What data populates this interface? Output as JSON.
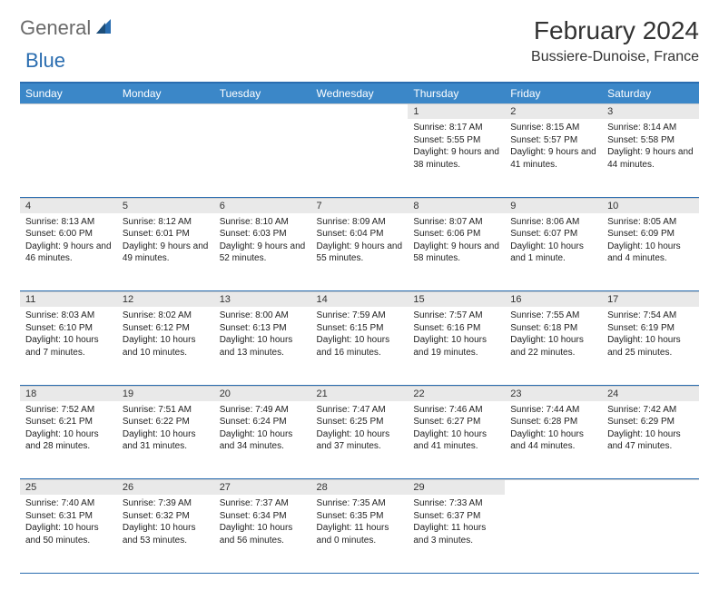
{
  "logo": {
    "part1": "General",
    "part2": "Blue"
  },
  "title": "February 2024",
  "location": "Bussiere-Dunoise, France",
  "colors": {
    "header_bg": "#3b87c8",
    "header_text": "#ffffff",
    "rule": "#2a6db0",
    "daynum_bg": "#e9e9e9",
    "logo_gray": "#6a6a6a",
    "logo_blue": "#2a6db0"
  },
  "day_headers": [
    "Sunday",
    "Monday",
    "Tuesday",
    "Wednesday",
    "Thursday",
    "Friday",
    "Saturday"
  ],
  "weeks": [
    [
      null,
      null,
      null,
      null,
      {
        "n": "1",
        "sr": "Sunrise: 8:17 AM",
        "ss": "Sunset: 5:55 PM",
        "dl": "Daylight: 9 hours and 38 minutes."
      },
      {
        "n": "2",
        "sr": "Sunrise: 8:15 AM",
        "ss": "Sunset: 5:57 PM",
        "dl": "Daylight: 9 hours and 41 minutes."
      },
      {
        "n": "3",
        "sr": "Sunrise: 8:14 AM",
        "ss": "Sunset: 5:58 PM",
        "dl": "Daylight: 9 hours and 44 minutes."
      }
    ],
    [
      {
        "n": "4",
        "sr": "Sunrise: 8:13 AM",
        "ss": "Sunset: 6:00 PM",
        "dl": "Daylight: 9 hours and 46 minutes."
      },
      {
        "n": "5",
        "sr": "Sunrise: 8:12 AM",
        "ss": "Sunset: 6:01 PM",
        "dl": "Daylight: 9 hours and 49 minutes."
      },
      {
        "n": "6",
        "sr": "Sunrise: 8:10 AM",
        "ss": "Sunset: 6:03 PM",
        "dl": "Daylight: 9 hours and 52 minutes."
      },
      {
        "n": "7",
        "sr": "Sunrise: 8:09 AM",
        "ss": "Sunset: 6:04 PM",
        "dl": "Daylight: 9 hours and 55 minutes."
      },
      {
        "n": "8",
        "sr": "Sunrise: 8:07 AM",
        "ss": "Sunset: 6:06 PM",
        "dl": "Daylight: 9 hours and 58 minutes."
      },
      {
        "n": "9",
        "sr": "Sunrise: 8:06 AM",
        "ss": "Sunset: 6:07 PM",
        "dl": "Daylight: 10 hours and 1 minute."
      },
      {
        "n": "10",
        "sr": "Sunrise: 8:05 AM",
        "ss": "Sunset: 6:09 PM",
        "dl": "Daylight: 10 hours and 4 minutes."
      }
    ],
    [
      {
        "n": "11",
        "sr": "Sunrise: 8:03 AM",
        "ss": "Sunset: 6:10 PM",
        "dl": "Daylight: 10 hours and 7 minutes."
      },
      {
        "n": "12",
        "sr": "Sunrise: 8:02 AM",
        "ss": "Sunset: 6:12 PM",
        "dl": "Daylight: 10 hours and 10 minutes."
      },
      {
        "n": "13",
        "sr": "Sunrise: 8:00 AM",
        "ss": "Sunset: 6:13 PM",
        "dl": "Daylight: 10 hours and 13 minutes."
      },
      {
        "n": "14",
        "sr": "Sunrise: 7:59 AM",
        "ss": "Sunset: 6:15 PM",
        "dl": "Daylight: 10 hours and 16 minutes."
      },
      {
        "n": "15",
        "sr": "Sunrise: 7:57 AM",
        "ss": "Sunset: 6:16 PM",
        "dl": "Daylight: 10 hours and 19 minutes."
      },
      {
        "n": "16",
        "sr": "Sunrise: 7:55 AM",
        "ss": "Sunset: 6:18 PM",
        "dl": "Daylight: 10 hours and 22 minutes."
      },
      {
        "n": "17",
        "sr": "Sunrise: 7:54 AM",
        "ss": "Sunset: 6:19 PM",
        "dl": "Daylight: 10 hours and 25 minutes."
      }
    ],
    [
      {
        "n": "18",
        "sr": "Sunrise: 7:52 AM",
        "ss": "Sunset: 6:21 PM",
        "dl": "Daylight: 10 hours and 28 minutes."
      },
      {
        "n": "19",
        "sr": "Sunrise: 7:51 AM",
        "ss": "Sunset: 6:22 PM",
        "dl": "Daylight: 10 hours and 31 minutes."
      },
      {
        "n": "20",
        "sr": "Sunrise: 7:49 AM",
        "ss": "Sunset: 6:24 PM",
        "dl": "Daylight: 10 hours and 34 minutes."
      },
      {
        "n": "21",
        "sr": "Sunrise: 7:47 AM",
        "ss": "Sunset: 6:25 PM",
        "dl": "Daylight: 10 hours and 37 minutes."
      },
      {
        "n": "22",
        "sr": "Sunrise: 7:46 AM",
        "ss": "Sunset: 6:27 PM",
        "dl": "Daylight: 10 hours and 41 minutes."
      },
      {
        "n": "23",
        "sr": "Sunrise: 7:44 AM",
        "ss": "Sunset: 6:28 PM",
        "dl": "Daylight: 10 hours and 44 minutes."
      },
      {
        "n": "24",
        "sr": "Sunrise: 7:42 AM",
        "ss": "Sunset: 6:29 PM",
        "dl": "Daylight: 10 hours and 47 minutes."
      }
    ],
    [
      {
        "n": "25",
        "sr": "Sunrise: 7:40 AM",
        "ss": "Sunset: 6:31 PM",
        "dl": "Daylight: 10 hours and 50 minutes."
      },
      {
        "n": "26",
        "sr": "Sunrise: 7:39 AM",
        "ss": "Sunset: 6:32 PM",
        "dl": "Daylight: 10 hours and 53 minutes."
      },
      {
        "n": "27",
        "sr": "Sunrise: 7:37 AM",
        "ss": "Sunset: 6:34 PM",
        "dl": "Daylight: 10 hours and 56 minutes."
      },
      {
        "n": "28",
        "sr": "Sunrise: 7:35 AM",
        "ss": "Sunset: 6:35 PM",
        "dl": "Daylight: 11 hours and 0 minutes."
      },
      {
        "n": "29",
        "sr": "Sunrise: 7:33 AM",
        "ss": "Sunset: 6:37 PM",
        "dl": "Daylight: 11 hours and 3 minutes."
      },
      null,
      null
    ]
  ]
}
